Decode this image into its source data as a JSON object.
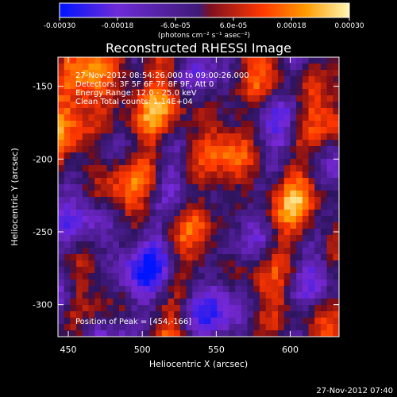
{
  "chart_data": {
    "type": "heatmap",
    "title": "Reconstructed RHESSI Image",
    "xlabel": "Heliocentric X (arcsec)",
    "ylabel": "Heliocentric Y (arcsec)",
    "xlim": [
      443,
      633
    ],
    "ylim": [
      -322,
      -130
    ],
    "x_ticks": [
      450,
      500,
      550,
      600
    ],
    "y_ticks": [
      -150,
      -200,
      -250,
      -300
    ],
    "colorbar": {
      "units": "(photons cm⁻² s⁻¹ asec⁻²)",
      "range": [
        -0.0003,
        0.0003
      ],
      "tick_labels": [
        "-0.00030",
        "-0.00018",
        "-6.0e-05",
        "6.0e-05",
        "0.00018",
        "0.00030"
      ],
      "colors": [
        "#0014ff",
        "#6e2bd8",
        "#3f1a78",
        "#c4202b",
        "#ff8a00",
        "#fff7b5"
      ]
    },
    "annotations": [
      "27-Nov-2012 08:54:26.000 to 09:00:26.000",
      "Detectors: 3F 5F 6F 7F 8F 9F, Att 0",
      "Energy Range: 12.0 - 25.0 keV",
      "Clean      Total counts: 1.14E+04",
      "Position of Peak = [454,-166]"
    ],
    "peak": [
      454,
      -166
    ]
  },
  "footer": {
    "timestamp": "27-Nov-2012 07:40"
  }
}
